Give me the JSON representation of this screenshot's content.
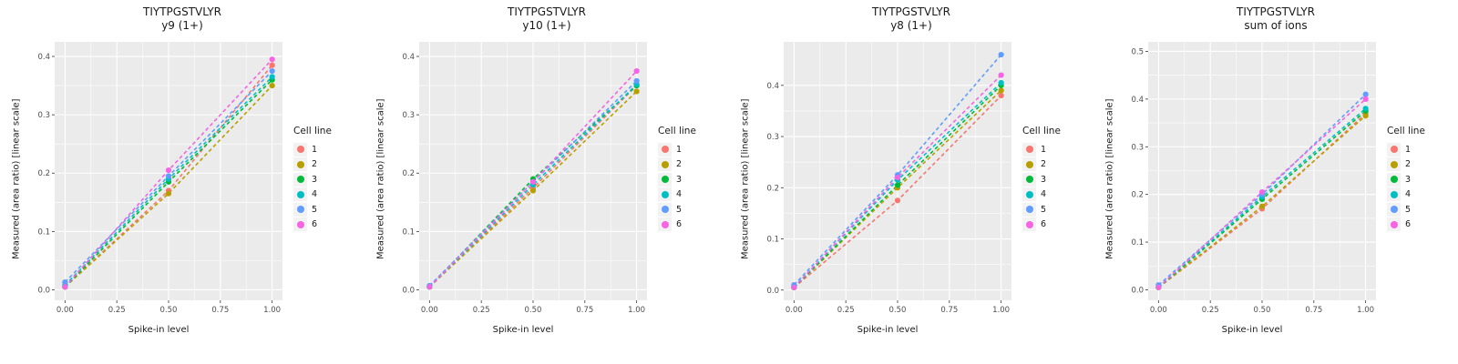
{
  "style": {
    "panel_bg": "#EBEBEB",
    "grid_major": "#FFFFFF",
    "grid_minor": "#FFFFFF",
    "tick_text": "#4D4D4D",
    "tick_mark": "#333333"
  },
  "legend": {
    "title": "Cell line",
    "items": [
      {
        "label": "1",
        "color": "#F8766D"
      },
      {
        "label": "2",
        "color": "#B79F00"
      },
      {
        "label": "3",
        "color": "#00BA38"
      },
      {
        "label": "4",
        "color": "#00BFC4"
      },
      {
        "label": "5",
        "color": "#619CFF"
      },
      {
        "label": "6",
        "color": "#F564E3"
      }
    ]
  },
  "chart_data": [
    {
      "type": "scatter",
      "title": "TIYTPGSTVLYR",
      "subtitle": "y9 (1+)",
      "xlabel": "Spike-in level",
      "ylabel": "Measured (area ratio) [linear scale]",
      "x": [
        0,
        0.5,
        1.0
      ],
      "xticks": [
        0,
        0.25,
        0.5,
        0.75,
        1.0
      ],
      "xtick_labels": [
        "0.00",
        "0.25",
        "0.50",
        "0.75",
        "1.00"
      ],
      "yticks": [
        0,
        0.1,
        0.2,
        0.3,
        0.4
      ],
      "ytick_labels": [
        "0.0",
        "0.1",
        "0.2",
        "0.3",
        "0.4"
      ],
      "xlim": [
        -0.05,
        1.05
      ],
      "ylim": [
        -0.018,
        0.425
      ],
      "line_style": "dashed",
      "grid": true,
      "legend_position": "right",
      "series": [
        {
          "name": "1",
          "color": "#F8766D",
          "values": [
            0.005,
            0.17,
            0.385
          ]
        },
        {
          "name": "2",
          "color": "#B79F00",
          "values": [
            0.005,
            0.165,
            0.35
          ]
        },
        {
          "name": "3",
          "color": "#00BA38",
          "values": [
            0.005,
            0.185,
            0.36
          ]
        },
        {
          "name": "4",
          "color": "#00BFC4",
          "values": [
            0.008,
            0.19,
            0.365
          ]
        },
        {
          "name": "5",
          "color": "#619CFF",
          "values": [
            0.013,
            0.195,
            0.375
          ]
        },
        {
          "name": "6",
          "color": "#F564E3",
          "values": [
            0.005,
            0.205,
            0.395
          ]
        }
      ]
    },
    {
      "type": "scatter",
      "title": "TIYTPGSTVLYR",
      "subtitle": "y10 (1+)",
      "xlabel": "Spike-in level",
      "ylabel": "Measured (area ratio) [linear scale]",
      "x": [
        0,
        0.5,
        1.0
      ],
      "xticks": [
        0,
        0.25,
        0.5,
        0.75,
        1.0
      ],
      "xtick_labels": [
        "0.00",
        "0.25",
        "0.50",
        "0.75",
        "1.00"
      ],
      "yticks": [
        0,
        0.1,
        0.2,
        0.3,
        0.4
      ],
      "ytick_labels": [
        "0.0",
        "0.1",
        "0.2",
        "0.3",
        "0.4"
      ],
      "xlim": [
        -0.05,
        1.05
      ],
      "ylim": [
        -0.018,
        0.425
      ],
      "line_style": "dashed",
      "grid": true,
      "legend_position": "right",
      "series": [
        {
          "name": "1",
          "color": "#F8766D",
          "values": [
            0.005,
            0.175,
            0.35
          ]
        },
        {
          "name": "2",
          "color": "#B79F00",
          "values": [
            0.005,
            0.17,
            0.34
          ]
        },
        {
          "name": "3",
          "color": "#00BA38",
          "values": [
            0.005,
            0.19,
            0.35
          ]
        },
        {
          "name": "4",
          "color": "#00BFC4",
          "values": [
            0.005,
            0.18,
            0.352
          ]
        },
        {
          "name": "5",
          "color": "#619CFF",
          "values": [
            0.007,
            0.185,
            0.358
          ]
        },
        {
          "name": "6",
          "color": "#F564E3",
          "values": [
            0.005,
            0.185,
            0.375
          ]
        }
      ]
    },
    {
      "type": "scatter",
      "title": "TIYTPGSTVLYR",
      "subtitle": "y8 (1+)",
      "xlabel": "Spike-in level",
      "ylabel": "Measured (area ratio) [linear scale]",
      "x": [
        0,
        0.5,
        1.0
      ],
      "xticks": [
        0,
        0.25,
        0.5,
        0.75,
        1.0
      ],
      "xtick_labels": [
        "0.00",
        "0.25",
        "0.50",
        "0.75",
        "1.00"
      ],
      "yticks": [
        0,
        0.1,
        0.2,
        0.3,
        0.4
      ],
      "ytick_labels": [
        "0.0",
        "0.1",
        "0.2",
        "0.3",
        "0.4"
      ],
      "xlim": [
        -0.05,
        1.05
      ],
      "ylim": [
        -0.02,
        0.485
      ],
      "line_style": "dashed",
      "grid": true,
      "legend_position": "right",
      "series": [
        {
          "name": "1",
          "color": "#F8766D",
          "values": [
            0.005,
            0.175,
            0.38
          ]
        },
        {
          "name": "2",
          "color": "#B79F00",
          "values": [
            0.005,
            0.2,
            0.39
          ]
        },
        {
          "name": "3",
          "color": "#00BA38",
          "values": [
            0.005,
            0.205,
            0.4
          ]
        },
        {
          "name": "4",
          "color": "#00BFC4",
          "values": [
            0.006,
            0.215,
            0.405
          ]
        },
        {
          "name": "5",
          "color": "#619CFF",
          "values": [
            0.01,
            0.225,
            0.46
          ]
        },
        {
          "name": "6",
          "color": "#F564E3",
          "values": [
            0.005,
            0.22,
            0.42
          ]
        }
      ]
    },
    {
      "type": "scatter",
      "title": "TIYTPGSTVLYR",
      "subtitle": "sum of ions",
      "xlabel": "Spike-in level",
      "ylabel": "Measured (area ratio) [linear scale]",
      "x": [
        0,
        0.5,
        1.0
      ],
      "xticks": [
        0,
        0.25,
        0.5,
        0.75,
        1.0
      ],
      "xtick_labels": [
        "0.00",
        "0.25",
        "0.50",
        "0.75",
        "1.00"
      ],
      "yticks": [
        0,
        0.1,
        0.2,
        0.3,
        0.4,
        0.5
      ],
      "ytick_labels": [
        "0.0",
        "0.1",
        "0.2",
        "0.3",
        "0.4",
        "0.5"
      ],
      "xlim": [
        -0.05,
        1.05
      ],
      "ylim": [
        -0.022,
        0.52
      ],
      "line_style": "dashed",
      "grid": true,
      "legend_position": "right",
      "series": [
        {
          "name": "1",
          "color": "#F8766D",
          "values": [
            0.005,
            0.17,
            0.37
          ]
        },
        {
          "name": "2",
          "color": "#B79F00",
          "values": [
            0.005,
            0.175,
            0.365
          ]
        },
        {
          "name": "3",
          "color": "#00BA38",
          "values": [
            0.005,
            0.19,
            0.375
          ]
        },
        {
          "name": "4",
          "color": "#00BFC4",
          "values": [
            0.006,
            0.195,
            0.38
          ]
        },
        {
          "name": "5",
          "color": "#619CFF",
          "values": [
            0.01,
            0.2,
            0.41
          ]
        },
        {
          "name": "6",
          "color": "#F564E3",
          "values": [
            0.005,
            0.205,
            0.4
          ]
        }
      ]
    }
  ]
}
